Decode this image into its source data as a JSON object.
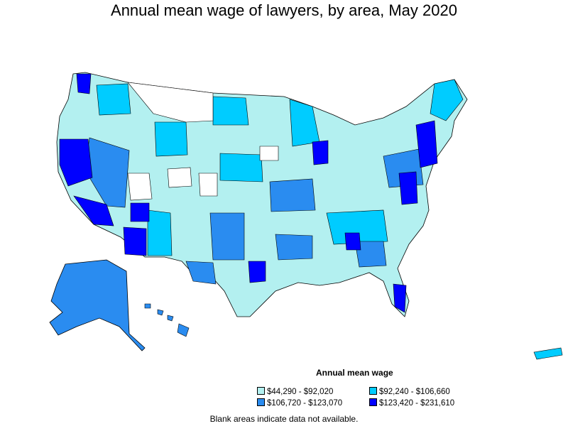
{
  "title": "Annual mean wage of lawyers, by area, May 2020",
  "legend": {
    "title": "Annual mean wage",
    "items": [
      {
        "label": "$44,290 - $92,020",
        "color": "#b3f0f0"
      },
      {
        "label": "$92,240 - $106,660",
        "color": "#00ccff"
      },
      {
        "label": "$106,720 - $123,070",
        "color": "#2a8cf0"
      },
      {
        "label": "$123,420 - $231,610",
        "color": "#0000ff"
      }
    ]
  },
  "footnote": "Blank areas indicate data not available.",
  "colors": {
    "no_data": "#ffffff",
    "border": "#000000"
  }
}
